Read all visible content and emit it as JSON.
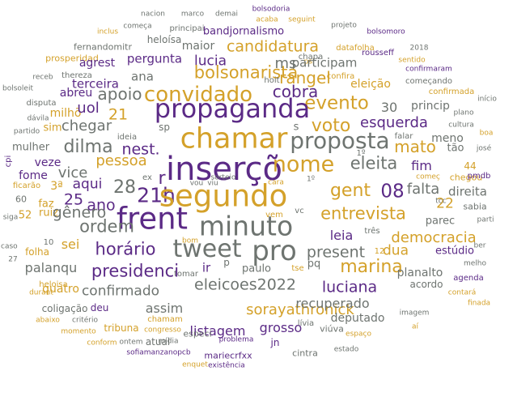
{
  "palette": {
    "purple": "#5b2a86",
    "gold": "#d4a12a",
    "gray": "#6e7470"
  },
  "words": [
    {
      "text": "nacion",
      "c": "gray"
    },
    {
      "text": "marco",
      "c": "gray"
    },
    {
      "text": "demai",
      "c": "gray"
    },
    {
      "text": "bolsodoria",
      "c": "purple"
    },
    {
      "text": "acaba",
      "c": "gold"
    },
    {
      "text": "seguint",
      "c": "gold"
    },
    {
      "text": "projeto",
      "c": "gray"
    },
    {
      "text": "bolsomoro",
      "c": "purple"
    },
    {
      "text": "inclus",
      "c": "gold"
    },
    {
      "text": "começa",
      "c": "gray"
    },
    {
      "text": "principai",
      "c": "gray"
    },
    {
      "text": "heloísa",
      "c": "gray"
    },
    {
      "text": "bandjornalismo",
      "c": "purple"
    },
    {
      "text": "datafolha",
      "c": "gold"
    },
    {
      "text": "chapa",
      "c": "gray"
    },
    {
      "text": "rousseff",
      "c": "purple"
    },
    {
      "text": "2018",
      "c": "gray"
    },
    {
      "text": "fernandomitr",
      "c": "gray"
    },
    {
      "text": "prosperidad",
      "c": "gold"
    },
    {
      "text": "agrest",
      "c": "purple"
    },
    {
      "text": "maior",
      "c": "gray"
    },
    {
      "text": "candidatura",
      "c": "gold"
    },
    {
      "text": "psi",
      "c": "gold"
    },
    {
      "text": "sentido",
      "c": "gold"
    },
    {
      "text": "confirmaram",
      "c": "purple"
    },
    {
      "text": "pergunta",
      "c": "purple"
    },
    {
      "text": "lucia",
      "c": "purple"
    },
    {
      "text": "ms",
      "c": "gray"
    },
    {
      "text": "participam",
      "c": "gray"
    },
    {
      "text": "receb",
      "c": "gray"
    },
    {
      "text": "bolsonarista",
      "c": "gold"
    },
    {
      "text": "confira",
      "c": "gold"
    },
    {
      "text": "começando",
      "c": "gray"
    },
    {
      "text": "bolsoleit",
      "c": "gray"
    },
    {
      "text": "thereza",
      "c": "gray"
    },
    {
      "text": "ana",
      "c": "gray"
    },
    {
      "text": "hoit",
      "c": "gray"
    },
    {
      "text": "rangel",
      "c": "gold"
    },
    {
      "text": "eleição",
      "c": "gold"
    },
    {
      "text": "terceira",
      "c": "purple"
    },
    {
      "text": "confirmada",
      "c": "gold"
    },
    {
      "text": "disputa",
      "c": "gray"
    },
    {
      "text": "abreu",
      "c": "purple"
    },
    {
      "text": "apoio",
      "c": "gray"
    },
    {
      "text": "convidado",
      "c": "gold"
    },
    {
      "text": "cobra",
      "c": "purple"
    },
    {
      "text": "evento",
      "c": "gold"
    },
    {
      "text": "início",
      "c": "gray"
    },
    {
      "text": "dávila",
      "c": "gray"
    },
    {
      "text": "milhõ",
      "c": "gold"
    },
    {
      "text": "uol",
      "c": "purple"
    },
    {
      "text": "propaganda",
      "c": "purple"
    },
    {
      "text": "30",
      "c": "gray"
    },
    {
      "text": "princip",
      "c": "gray"
    },
    {
      "text": "plano",
      "c": "gray"
    },
    {
      "text": "partido",
      "c": "gray"
    },
    {
      "text": "sim",
      "c": "gold"
    },
    {
      "text": "21",
      "c": "gold"
    },
    {
      "text": "ideia",
      "c": "gray"
    },
    {
      "text": "s",
      "c": "gray"
    },
    {
      "text": "voto",
      "c": "gold"
    },
    {
      "text": "esquerda",
      "c": "purple"
    },
    {
      "text": "cultura",
      "c": "gray"
    },
    {
      "text": "boa",
      "c": "gold"
    },
    {
      "text": "chegar",
      "c": "gray"
    },
    {
      "text": "sp",
      "c": "gray"
    },
    {
      "text": "chamar",
      "c": "gold"
    },
    {
      "text": "falar",
      "c": "gray"
    },
    {
      "text": "meno",
      "c": "gray"
    },
    {
      "text": "mulher",
      "c": "gray"
    },
    {
      "text": "dilma",
      "c": "gray"
    },
    {
      "text": "nest.",
      "c": "purple"
    },
    {
      "text": "proposta",
      "c": "gray"
    },
    {
      "text": "mato",
      "c": "gold"
    },
    {
      "text": "tão",
      "c": "gray"
    },
    {
      "text": "josé",
      "c": "gray"
    },
    {
      "text": "cpi",
      "c": "purple"
    },
    {
      "text": "veze",
      "c": "purple"
    },
    {
      "text": "pessoa",
      "c": "gold"
    },
    {
      "text": "inserçõ",
      "c": "purple"
    },
    {
      "text": "1º",
      "c": "gray"
    },
    {
      "text": "nome",
      "c": "gold"
    },
    {
      "text": "eleita",
      "c": "gray"
    },
    {
      "text": "fim",
      "c": "purple"
    },
    {
      "text": "44",
      "c": "gold"
    },
    {
      "text": "fome",
      "c": "purple"
    },
    {
      "text": "vice",
      "c": "gray"
    },
    {
      "text": "sorteio",
      "c": "gray"
    },
    {
      "text": "começ",
      "c": "gold"
    },
    {
      "text": "chegou",
      "c": "gold"
    },
    {
      "text": "pmdb",
      "c": "purple"
    },
    {
      "text": "ficarão",
      "c": "gold"
    },
    {
      "text": "3ª",
      "c": "gold"
    },
    {
      "text": "aqui",
      "c": "purple"
    },
    {
      "text": "28",
      "c": "gray"
    },
    {
      "text": "ex",
      "c": "gray"
    },
    {
      "text": "r",
      "c": "purple"
    },
    {
      "text": "vou",
      "c": "gray"
    },
    {
      "text": "viu",
      "c": "gray"
    },
    {
      "text": "cara",
      "c": "gold"
    },
    {
      "text": "1º",
      "c": "gray"
    },
    {
      "text": "gent",
      "c": "gold"
    },
    {
      "text": "08",
      "c": "purple"
    },
    {
      "text": "falta",
      "c": "gray"
    },
    {
      "text": "direita",
      "c": "gray"
    },
    {
      "text": "60",
      "c": "gray"
    },
    {
      "text": "faz",
      "c": "gold"
    },
    {
      "text": "25",
      "c": "purple"
    },
    {
      "text": "ano",
      "c": "purple"
    },
    {
      "text": "21h",
      "c": "purple"
    },
    {
      "text": "segundo",
      "c": "gold"
    },
    {
      "text": "22",
      "c": "gold"
    },
    {
      "text": "tcc",
      "c": "gray"
    },
    {
      "text": "sabia",
      "c": "gray"
    },
    {
      "text": "siga",
      "c": "gray"
    },
    {
      "text": "52",
      "c": "gold"
    },
    {
      "text": "ruiz",
      "c": "gold"
    },
    {
      "text": "gênero",
      "c": "gray"
    },
    {
      "text": "vem",
      "c": "gold"
    },
    {
      "text": "vc",
      "c": "gray"
    },
    {
      "text": "entrevista",
      "c": "gold"
    },
    {
      "text": "parec",
      "c": "gray"
    },
    {
      "text": "parti",
      "c": "gray"
    },
    {
      "text": "frent",
      "c": "purple"
    },
    {
      "text": "ordem",
      "c": "gray"
    },
    {
      "text": "minuto",
      "c": "gray"
    },
    {
      "text": "caso",
      "c": "gray"
    },
    {
      "text": "10",
      "c": "gray"
    },
    {
      "text": "sei",
      "c": "gold"
    },
    {
      "text": "leia",
      "c": "purple"
    },
    {
      "text": "três",
      "c": "gray"
    },
    {
      "text": "democracia",
      "c": "gold"
    },
    {
      "text": "ber",
      "c": "gray"
    },
    {
      "text": "folha",
      "c": "gold"
    },
    {
      "text": "horário",
      "c": "purple"
    },
    {
      "text": "tweet",
      "c": "gray"
    },
    {
      "text": "pro",
      "c": "gray"
    },
    {
      "text": "present",
      "c": "gray"
    },
    {
      "text": "dua",
      "c": "gold"
    },
    {
      "text": "estúdio",
      "c": "purple"
    },
    {
      "text": "27",
      "c": "gray"
    },
    {
      "text": "bom",
      "c": "gold"
    },
    {
      "text": "12",
      "c": "gold"
    },
    {
      "text": "p",
      "c": "gray"
    },
    {
      "text": "palanqu",
      "c": "gray"
    },
    {
      "text": "pq",
      "c": "gray"
    },
    {
      "text": "paulo",
      "c": "gray"
    },
    {
      "text": "tse",
      "c": "gold"
    },
    {
      "text": "marina",
      "c": "gold"
    },
    {
      "text": "melho",
      "c": "gray"
    },
    {
      "text": "ir",
      "c": "purple"
    },
    {
      "text": "tomar",
      "c": "gray"
    },
    {
      "text": "planalto",
      "c": "gray"
    },
    {
      "text": "presidenci",
      "c": "purple"
    },
    {
      "text": "agenda",
      "c": "purple"
    },
    {
      "text": "eleicoes2022",
      "c": "gray"
    },
    {
      "text": "heloisa",
      "c": "gold"
    },
    {
      "text": "quatro",
      "c": "gold"
    },
    {
      "text": "luciana",
      "c": "purple"
    },
    {
      "text": "acordo",
      "c": "gray"
    },
    {
      "text": "contará",
      "c": "gold"
    },
    {
      "text": "durant",
      "c": "gold"
    },
    {
      "text": "confirmado",
      "c": "gray"
    },
    {
      "text": "finada",
      "c": "gold"
    },
    {
      "text": "sorayathronick",
      "c": "gold"
    },
    {
      "text": "recuperado",
      "c": "gray"
    },
    {
      "text": "coligação",
      "c": "gray"
    },
    {
      "text": "deu",
      "c": "purple"
    },
    {
      "text": "assim",
      "c": "gray"
    },
    {
      "text": "deputado",
      "c": "gray"
    },
    {
      "text": "abaixo",
      "c": "gold"
    },
    {
      "text": "critério",
      "c": "gray"
    },
    {
      "text": "chamam",
      "c": "gold"
    },
    {
      "text": "imagem",
      "c": "gray"
    },
    {
      "text": "tribuna",
      "c": "gold"
    },
    {
      "text": "listagem",
      "c": "purple"
    },
    {
      "text": "grosso",
      "c": "purple"
    },
    {
      "text": "lívia",
      "c": "gray"
    },
    {
      "text": "viúva",
      "c": "gray"
    },
    {
      "text": "aí",
      "c": "gold"
    },
    {
      "text": "momento",
      "c": "gold"
    },
    {
      "text": "congresso",
      "c": "gold"
    },
    {
      "text": "mídia",
      "c": "gray"
    },
    {
      "text": "atual",
      "c": "gray"
    },
    {
      "text": "especi",
      "c": "gray"
    },
    {
      "text": "problema",
      "c": "purple"
    },
    {
      "text": "jn",
      "c": "purple"
    },
    {
      "text": "espaço",
      "c": "gold"
    },
    {
      "text": "conform",
      "c": "gold"
    },
    {
      "text": "ontem",
      "c": "gray"
    },
    {
      "text": "sofiamanzanopcb",
      "c": "purple"
    },
    {
      "text": "mariecrfxx",
      "c": "purple"
    },
    {
      "text": "cintra",
      "c": "gray"
    },
    {
      "text": "estado",
      "c": "gray"
    },
    {
      "text": "enquet",
      "c": "gold"
    },
    {
      "text": "existência",
      "c": "purple"
    }
  ]
}
